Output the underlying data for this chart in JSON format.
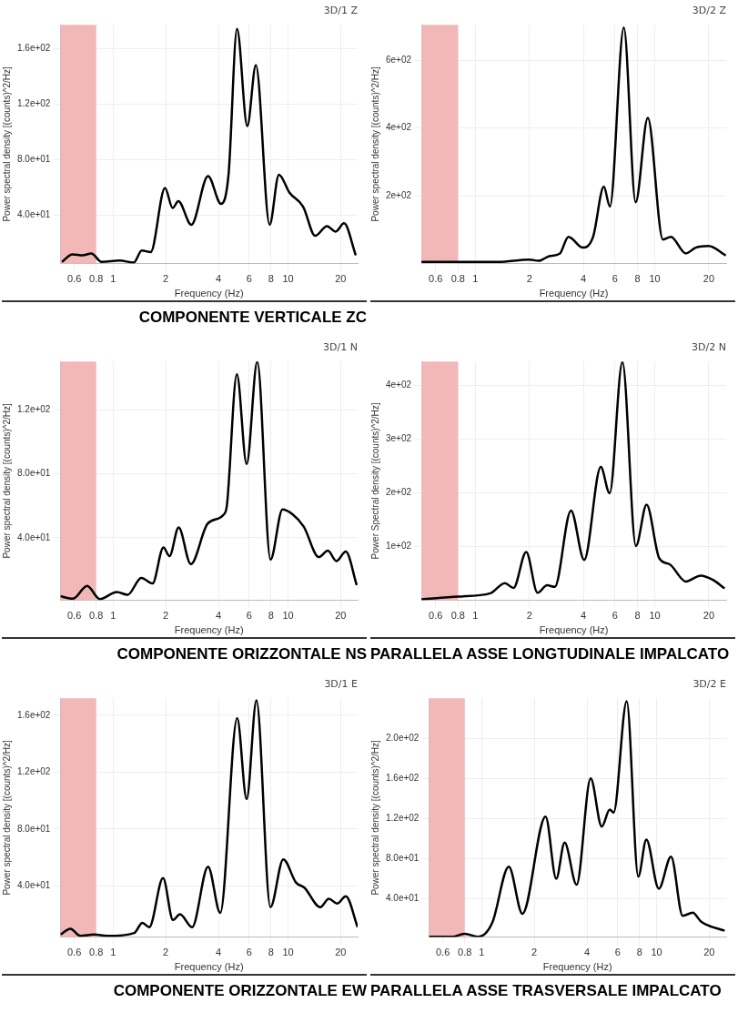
{
  "chart_data": [
    {
      "type": "line",
      "title": "3D/1 Z",
      "xlabel": "Frequency (Hz)",
      "ylabel": "Power spectral density [(counts)^2/Hz]",
      "log": "x",
      "grid": true,
      "xlim": [
        0.5,
        25
      ],
      "ylim": [
        5,
        177
      ],
      "xticks": [
        0.6,
        0.8,
        1,
        2,
        4,
        6,
        8,
        10,
        20
      ],
      "yticks": [
        {
          "value": 40,
          "label": "4.0e+01"
        },
        {
          "value": 80,
          "label": "8.0e+01"
        },
        {
          "value": 120,
          "label": "1.2e+02"
        },
        {
          "value": 160,
          "label": "1.6e+02"
        }
      ],
      "bands": [
        {
          "axis": "x",
          "from": 0.5,
          "to": 0.8,
          "color": "#f2b8b8"
        }
      ],
      "annotations": [
        "COMPONENTE  VERTICALE ZC"
      ],
      "series": [
        {
          "color": "#000000",
          "x": [
            0.51,
            0.585,
            0.67,
            0.75,
            0.86,
            1.09,
            1.31,
            1.46,
            1.64,
            1.98,
            2.19,
            2.36,
            2.8,
            3.49,
            4.14,
            4.57,
            5.11,
            5.85,
            6.55,
            7.85,
            8.87,
            10.2,
            12.2,
            14.3,
            16.7,
            18.7,
            20.9,
            24.4
          ],
          "values": [
            6.2,
            11.7,
            10.9,
            12.3,
            6.2,
            7.2,
            5.7,
            14.4,
            13.3,
            59.5,
            45,
            50,
            33,
            68,
            48,
            69,
            174,
            104,
            148,
            33,
            69,
            56,
            46,
            25,
            32,
            28,
            34,
            11
          ]
        }
      ]
    },
    {
      "type": "line",
      "title": "3D/2 Z",
      "xlabel": "Frequency (Hz)",
      "ylabel": "Power spectral density [(counts)^2/Hz]",
      "log": "x",
      "grid": true,
      "xlim": [
        0.5,
        25
      ],
      "ylim": [
        0,
        705
      ],
      "xticks": [
        0.6,
        0.8,
        1,
        2,
        4,
        6,
        8,
        10,
        20
      ],
      "yticks": [
        {
          "value": 200,
          "label": "2e+02"
        },
        {
          "value": 400,
          "label": "4e+02"
        },
        {
          "value": 600,
          "label": "6e+02"
        }
      ],
      "bands": [
        {
          "axis": "x",
          "from": 0.5,
          "to": 0.8,
          "color": "#f2b8b8"
        }
      ],
      "series": [
        {
          "color": "#000000",
          "x": [
            0.5,
            1.34,
            2.0,
            2.25,
            2.58,
            2.95,
            3.3,
            3.97,
            4.53,
            5.2,
            5.62,
            6.72,
            7.82,
            9.14,
            11.1,
            12.3,
            14.9,
            16.9,
            19.9,
            24.9
          ],
          "values": [
            5,
            5,
            12,
            8,
            22,
            29,
            79,
            47,
            79,
            227,
            168,
            697,
            181,
            430,
            71,
            79,
            30,
            47,
            52,
            24
          ]
        }
      ]
    },
    {
      "type": "line",
      "title": "3D/1 N",
      "xlabel": "Frequency (Hz)",
      "ylabel": "Power spectral density [(counts)^2/Hz]",
      "log": "x",
      "grid": true,
      "xlim": [
        0.5,
        25
      ],
      "ylim": [
        1,
        150
      ],
      "xticks": [
        0.6,
        0.8,
        1,
        2,
        4,
        6,
        8,
        10,
        20
      ],
      "yticks": [
        {
          "value": 40,
          "label": "4.0e+01"
        },
        {
          "value": 80,
          "label": "8.0e+01"
        },
        {
          "value": 120,
          "label": "1.2e+02"
        }
      ],
      "bands": [
        {
          "axis": "x",
          "from": 0.5,
          "to": 0.8,
          "color": "#f2b8b8"
        }
      ],
      "annotations": [
        "COMPONENTE  ORIZZONTALE NS"
      ],
      "series": [
        {
          "color": "#000000",
          "x": [
            0.5,
            0.59,
            0.71,
            0.84,
            1.05,
            1.21,
            1.45,
            1.68,
            1.94,
            2.1,
            2.37,
            2.78,
            3.47,
            4.28,
            4.47,
            5.1,
            5.8,
            6.67,
            7.94,
            9.3,
            10.6,
            12.3,
            15.0,
            16.9,
            18.9,
            21.4,
            24.7
          ],
          "values": [
            3.6,
            2,
            10,
            1.8,
            6.2,
            4.4,
            15,
            11.5,
            34,
            28.6,
            46.5,
            23.6,
            48.8,
            54.4,
            60,
            142,
            86,
            150,
            26.4,
            57.7,
            54.7,
            47,
            28,
            32,
            25.5,
            31.4,
            10.5
          ]
        }
      ]
    },
    {
      "type": "line",
      "title": "3D/2 N",
      "xlabel": "Frequency (Hz)",
      "ylabel": "Power Spectral density [(counts)^2/Hz]",
      "log": "x",
      "grid": true,
      "xlim": [
        0.5,
        25
      ],
      "ylim": [
        0,
        444
      ],
      "xticks": [
        0.6,
        0.8,
        1,
        2,
        4,
        6,
        8,
        10,
        20
      ],
      "yticks": [
        {
          "value": 100,
          "label": "1e+02"
        },
        {
          "value": 200,
          "label": "2e+02"
        },
        {
          "value": 300,
          "label": "3e+02"
        },
        {
          "value": 400,
          "label": "4e+02"
        }
      ],
      "bands": [
        {
          "axis": "x",
          "from": 0.5,
          "to": 0.8,
          "color": "#f2b8b8"
        }
      ],
      "annotations": [
        "PARALLELA ASSE LONGTUDINALE IMPALCATO"
      ],
      "series": [
        {
          "color": "#000000",
          "x": [
            0.5,
            0.8,
            1.21,
            1.46,
            1.63,
            1.92,
            2.22,
            2.51,
            2.77,
            3.41,
            4.04,
            5.0,
            5.6,
            6.6,
            7.85,
            9.0,
            10.6,
            12.1,
            14.9,
            18.0,
            21.1,
            24.5
          ],
          "values": [
            2,
            7,
            13,
            32,
            23,
            90,
            14,
            28,
            25,
            167,
            75,
            248,
            199,
            443,
            101,
            178,
            78,
            67,
            35,
            46,
            38,
            22
          ]
        }
      ]
    },
    {
      "type": "line",
      "title": "3D/1 E",
      "xlabel": "Frequency (Hz)",
      "ylabel": "Power spectral density [(counts)^2/Hz]",
      "log": "x",
      "grid": true,
      "xlim": [
        0.5,
        25
      ],
      "ylim": [
        4,
        172
      ],
      "xticks": [
        0.6,
        0.8,
        1,
        2,
        4,
        6,
        8,
        10,
        20
      ],
      "yticks": [
        {
          "value": 40,
          "label": "4.0e+01"
        },
        {
          "value": 80,
          "label": "8.0e+01"
        },
        {
          "value": 120,
          "label": "1.2e+02"
        },
        {
          "value": 160,
          "label": "1.6e+02"
        }
      ],
      "bands": [
        {
          "axis": "x",
          "from": 0.5,
          "to": 0.8,
          "color": "#f2b8b8"
        }
      ],
      "annotations": [
        "COMPONENTE  ORIZZONTALE EW"
      ],
      "series": [
        {
          "color": "#000000",
          "x": [
            0.5,
            0.57,
            0.65,
            0.78,
            0.92,
            1.32,
            1.47,
            1.61,
            1.93,
            2.2,
            2.41,
            2.83,
            3.49,
            4.1,
            5.12,
            5.8,
            6.6,
            7.93,
            9.4,
            11.1,
            12.4,
            15.3,
            17.1,
            19.1,
            21.4,
            25
          ],
          "values": [
            5.8,
            9.9,
            4.8,
            5.8,
            4.8,
            6.9,
            14,
            11,
            45.5,
            16,
            20,
            11,
            53.6,
            21,
            158,
            101,
            170.5,
            25,
            58.7,
            42.4,
            38.8,
            25,
            31,
            27.6,
            32.7,
            11
          ]
        }
      ]
    },
    {
      "type": "line",
      "title": "3D/2 E",
      "xlabel": "Frequency (Hz)",
      "ylabel": "Power spectral density [(counts)^2/Hz]",
      "log": "x",
      "grid": true,
      "xlim": [
        0.5,
        25
      ],
      "ylim": [
        1.7,
        240
      ],
      "xticks": [
        0.6,
        0.8,
        1,
        2,
        4,
        6,
        8,
        10,
        20
      ],
      "yticks": [
        {
          "value": 40,
          "label": "4.0e+01"
        },
        {
          "value": 80,
          "label": "8.0e+01"
        },
        {
          "value": 120,
          "label": "1.2e+02"
        },
        {
          "value": 160,
          "label": "1.6e+02"
        },
        {
          "value": 200,
          "label": "2.0e+02"
        }
      ],
      "bands": [
        {
          "axis": "x",
          "from": 0.5,
          "to": 0.8,
          "color": "#f2b8b8"
        }
      ],
      "annotations": [
        "PARALLELA ASSE TRASVERSALE IMPALCATO"
      ],
      "series": [
        {
          "color": "#000000",
          "x": [
            0.5,
            0.68,
            0.8,
            0.96,
            1.15,
            1.43,
            1.71,
            2.32,
            2.67,
            2.98,
            3.49,
            4.2,
            4.86,
            5.4,
            5.68,
            6.75,
            7.86,
            8.74,
            10.3,
            12.1,
            14.1,
            16.1,
            18.0,
            24.5
          ],
          "values": [
            2,
            2,
            5,
            2,
            16,
            72,
            25,
            122,
            60,
            96,
            54,
            160,
            112,
            129,
            126,
            237,
            62,
            99,
            50,
            82,
            23,
            26,
            17,
            8
          ]
        }
      ]
    }
  ]
}
